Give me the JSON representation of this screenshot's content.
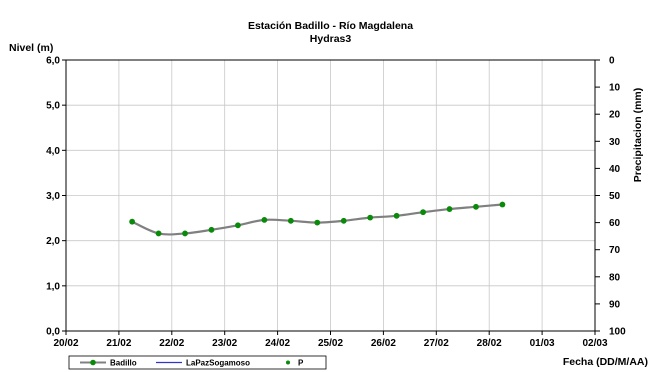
{
  "chart_data": {
    "type": "line",
    "title": "Estación Badillo - Río Magdalena",
    "subtitle": "Hydras3",
    "ylabel": "Nivel (m)",
    "y2label": "Precipitacion (mm)",
    "xlabel": "Fecha (DD/M/AA)",
    "x_tick_labels": [
      "20/02",
      "21/02",
      "22/02",
      "23/02",
      "24/02",
      "25/02",
      "26/02",
      "27/02",
      "28/02",
      "01/03",
      "02/03"
    ],
    "y_tick_labels": [
      "0,0",
      "1,0",
      "2,0",
      "3,0",
      "4,0",
      "5,0",
      "6,0"
    ],
    "y2_tick_labels": [
      "0",
      "10",
      "20",
      "30",
      "40",
      "50",
      "60",
      "70",
      "80",
      "90",
      "100"
    ],
    "xlim": [
      0,
      10
    ],
    "ylim": [
      0,
      6
    ],
    "y2lim": [
      0,
      100
    ],
    "y2_inverted": true,
    "grid": true,
    "legend_position": "bottom-left",
    "series": [
      {
        "name": "Badillo",
        "color": "#808080",
        "marker_color": "#0a8a0a",
        "x": [
          1.25,
          1.75,
          2.25,
          2.75,
          3.25,
          3.75,
          4.25,
          4.75,
          5.25,
          5.75,
          6.25,
          6.75,
          7.25,
          7.75,
          8.25
        ],
        "values": [
          2.42,
          2.16,
          2.16,
          2.24,
          2.34,
          2.46,
          2.44,
          2.4,
          2.44,
          2.51,
          2.55,
          2.63,
          2.7,
          2.75,
          2.8
        ]
      },
      {
        "name": "LaPazSogamoso",
        "color": "#3333cc",
        "x": [],
        "values": []
      },
      {
        "name": "P",
        "color": "#0a8a0a",
        "x": [],
        "values": []
      }
    ]
  }
}
